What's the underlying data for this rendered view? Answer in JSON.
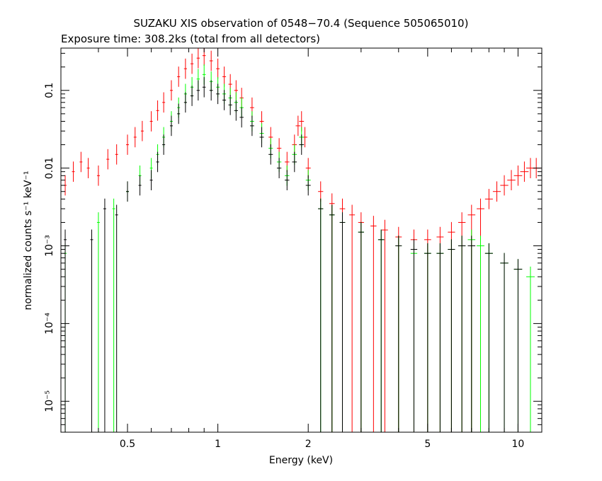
{
  "chart_data": {
    "type": "scatter",
    "title": "SUZAKU XIS observation of 0548−70.4 (Sequence 505065010)",
    "subtitle": "Exposure time: 308.2ks (total from all detectors)",
    "xlabel": "Energy (keV)",
    "ylabel": "normalized counts s⁻¹ keV⁻¹",
    "x_scale": "log",
    "y_scale": "log",
    "xlim": [
      0.3,
      12.0
    ],
    "ylim": [
      4e-06,
      0.35
    ],
    "x_ticks": [
      {
        "value": 0.5,
        "label": "0.5"
      },
      {
        "value": 1,
        "label": "1"
      },
      {
        "value": 2,
        "label": "2"
      },
      {
        "value": 5,
        "label": "5"
      },
      {
        "value": 10,
        "label": "10"
      }
    ],
    "y_ticks": [
      {
        "value": 0.1,
        "label": "0.1"
      },
      {
        "value": 0.01,
        "label": "0.01"
      },
      {
        "value": 0.001,
        "label": "10⁻³"
      },
      {
        "value": 0.0001,
        "label": "10⁻⁴"
      },
      {
        "value": 1e-05,
        "label": "10⁻⁵"
      }
    ],
    "grid": false,
    "legend": "none",
    "series": [
      {
        "color": "#ff0000",
        "points": [
          [
            0.31,
            0.006
          ],
          [
            0.33,
            0.009
          ],
          [
            0.35,
            0.012
          ],
          [
            0.37,
            0.01
          ],
          [
            0.4,
            0.008
          ],
          [
            0.43,
            0.013
          ],
          [
            0.46,
            0.015
          ],
          [
            0.5,
            0.02
          ],
          [
            0.53,
            0.025
          ],
          [
            0.56,
            0.03
          ],
          [
            0.6,
            0.04
          ],
          [
            0.63,
            0.055
          ],
          [
            0.66,
            0.07
          ],
          [
            0.7,
            0.1
          ],
          [
            0.74,
            0.15
          ],
          [
            0.78,
            0.19
          ],
          [
            0.82,
            0.22
          ],
          [
            0.86,
            0.26
          ],
          [
            0.9,
            0.28
          ],
          [
            0.95,
            0.24
          ],
          [
            1.0,
            0.19
          ],
          [
            1.05,
            0.15
          ],
          [
            1.1,
            0.12
          ],
          [
            1.15,
            0.1
          ],
          [
            1.2,
            0.08
          ],
          [
            1.3,
            0.06
          ],
          [
            1.4,
            0.04
          ],
          [
            1.5,
            0.025
          ],
          [
            1.6,
            0.018
          ],
          [
            1.7,
            0.012
          ],
          [
            1.8,
            0.02
          ],
          [
            1.85,
            0.035
          ],
          [
            1.9,
            0.04
          ],
          [
            1.95,
            0.025
          ],
          [
            2.0,
            0.01
          ],
          [
            2.2,
            0.005
          ],
          [
            2.4,
            0.0035
          ],
          [
            2.6,
            0.003
          ],
          [
            2.8,
            0.0025
          ],
          [
            3.0,
            0.002
          ],
          [
            3.3,
            0.0018
          ],
          [
            3.6,
            0.0016
          ],
          [
            4.0,
            0.0013
          ],
          [
            4.5,
            0.0012
          ],
          [
            5.0,
            0.0012
          ],
          [
            5.5,
            0.0013
          ],
          [
            6.0,
            0.0015
          ],
          [
            6.5,
            0.002
          ],
          [
            7.0,
            0.0025
          ],
          [
            7.5,
            0.003
          ],
          [
            8.0,
            0.004
          ],
          [
            8.5,
            0.005
          ],
          [
            9.0,
            0.006
          ],
          [
            9.5,
            0.007
          ],
          [
            10.0,
            0.008
          ],
          [
            10.5,
            0.009
          ],
          [
            11.0,
            0.01
          ],
          [
            11.5,
            0.01
          ]
        ]
      },
      {
        "color": "#00ff00",
        "points": [
          [
            0.31,
            0.0008
          ],
          [
            0.4,
            0.002
          ],
          [
            0.45,
            0.003
          ],
          [
            0.5,
            0.005
          ],
          [
            0.55,
            0.008
          ],
          [
            0.6,
            0.01
          ],
          [
            0.63,
            0.015
          ],
          [
            0.66,
            0.025
          ],
          [
            0.7,
            0.04
          ],
          [
            0.74,
            0.06
          ],
          [
            0.78,
            0.09
          ],
          [
            0.82,
            0.11
          ],
          [
            0.86,
            0.14
          ],
          [
            0.9,
            0.16
          ],
          [
            0.95,
            0.13
          ],
          [
            1.0,
            0.11
          ],
          [
            1.05,
            0.09
          ],
          [
            1.1,
            0.08
          ],
          [
            1.15,
            0.07
          ],
          [
            1.2,
            0.06
          ],
          [
            1.3,
            0.04
          ],
          [
            1.4,
            0.028
          ],
          [
            1.5,
            0.018
          ],
          [
            1.6,
            0.012
          ],
          [
            1.7,
            0.008
          ],
          [
            1.8,
            0.015
          ],
          [
            1.9,
            0.025
          ],
          [
            2.0,
            0.007
          ],
          [
            2.2,
            0.003
          ],
          [
            2.4,
            0.0025
          ],
          [
            2.6,
            0.002
          ],
          [
            3.0,
            0.0015
          ],
          [
            3.5,
            0.0012
          ],
          [
            4.0,
            0.001
          ],
          [
            4.5,
            0.0008
          ],
          [
            5.0,
            0.0008
          ],
          [
            5.5,
            0.0008
          ],
          [
            6.0,
            0.0009
          ],
          [
            6.5,
            0.001
          ],
          [
            7.0,
            0.0012
          ],
          [
            7.5,
            0.001
          ],
          [
            8.0,
            0.0008
          ],
          [
            9.0,
            0.0006
          ],
          [
            10.0,
            0.0005
          ],
          [
            11.0,
            0.0004
          ]
        ]
      },
      {
        "color": "#000000",
        "points": [
          [
            0.31,
            0.0012
          ],
          [
            0.38,
            0.0012
          ],
          [
            0.42,
            0.003
          ],
          [
            0.46,
            0.0025
          ],
          [
            0.5,
            0.005
          ],
          [
            0.55,
            0.006
          ],
          [
            0.6,
            0.007
          ],
          [
            0.63,
            0.012
          ],
          [
            0.66,
            0.02
          ],
          [
            0.7,
            0.035
          ],
          [
            0.74,
            0.05
          ],
          [
            0.78,
            0.07
          ],
          [
            0.82,
            0.085
          ],
          [
            0.86,
            0.1
          ],
          [
            0.9,
            0.11
          ],
          [
            0.95,
            0.1
          ],
          [
            1.0,
            0.09
          ],
          [
            1.05,
            0.075
          ],
          [
            1.1,
            0.065
          ],
          [
            1.15,
            0.055
          ],
          [
            1.2,
            0.045
          ],
          [
            1.3,
            0.035
          ],
          [
            1.4,
            0.025
          ],
          [
            1.5,
            0.015
          ],
          [
            1.6,
            0.01
          ],
          [
            1.7,
            0.007
          ],
          [
            1.8,
            0.012
          ],
          [
            1.9,
            0.02
          ],
          [
            2.0,
            0.006
          ],
          [
            2.2,
            0.003
          ],
          [
            2.4,
            0.0025
          ],
          [
            2.6,
            0.002
          ],
          [
            3.0,
            0.0015
          ],
          [
            3.5,
            0.0012
          ],
          [
            4.0,
            0.001
          ],
          [
            4.5,
            0.0009
          ],
          [
            5.0,
            0.0008
          ],
          [
            5.5,
            0.0008
          ],
          [
            6.0,
            0.0009
          ],
          [
            6.5,
            0.001
          ],
          [
            7.0,
            0.001
          ],
          [
            8.0,
            0.0008
          ],
          [
            9.0,
            0.0006
          ],
          [
            10.0,
            0.0005
          ]
        ]
      }
    ]
  }
}
